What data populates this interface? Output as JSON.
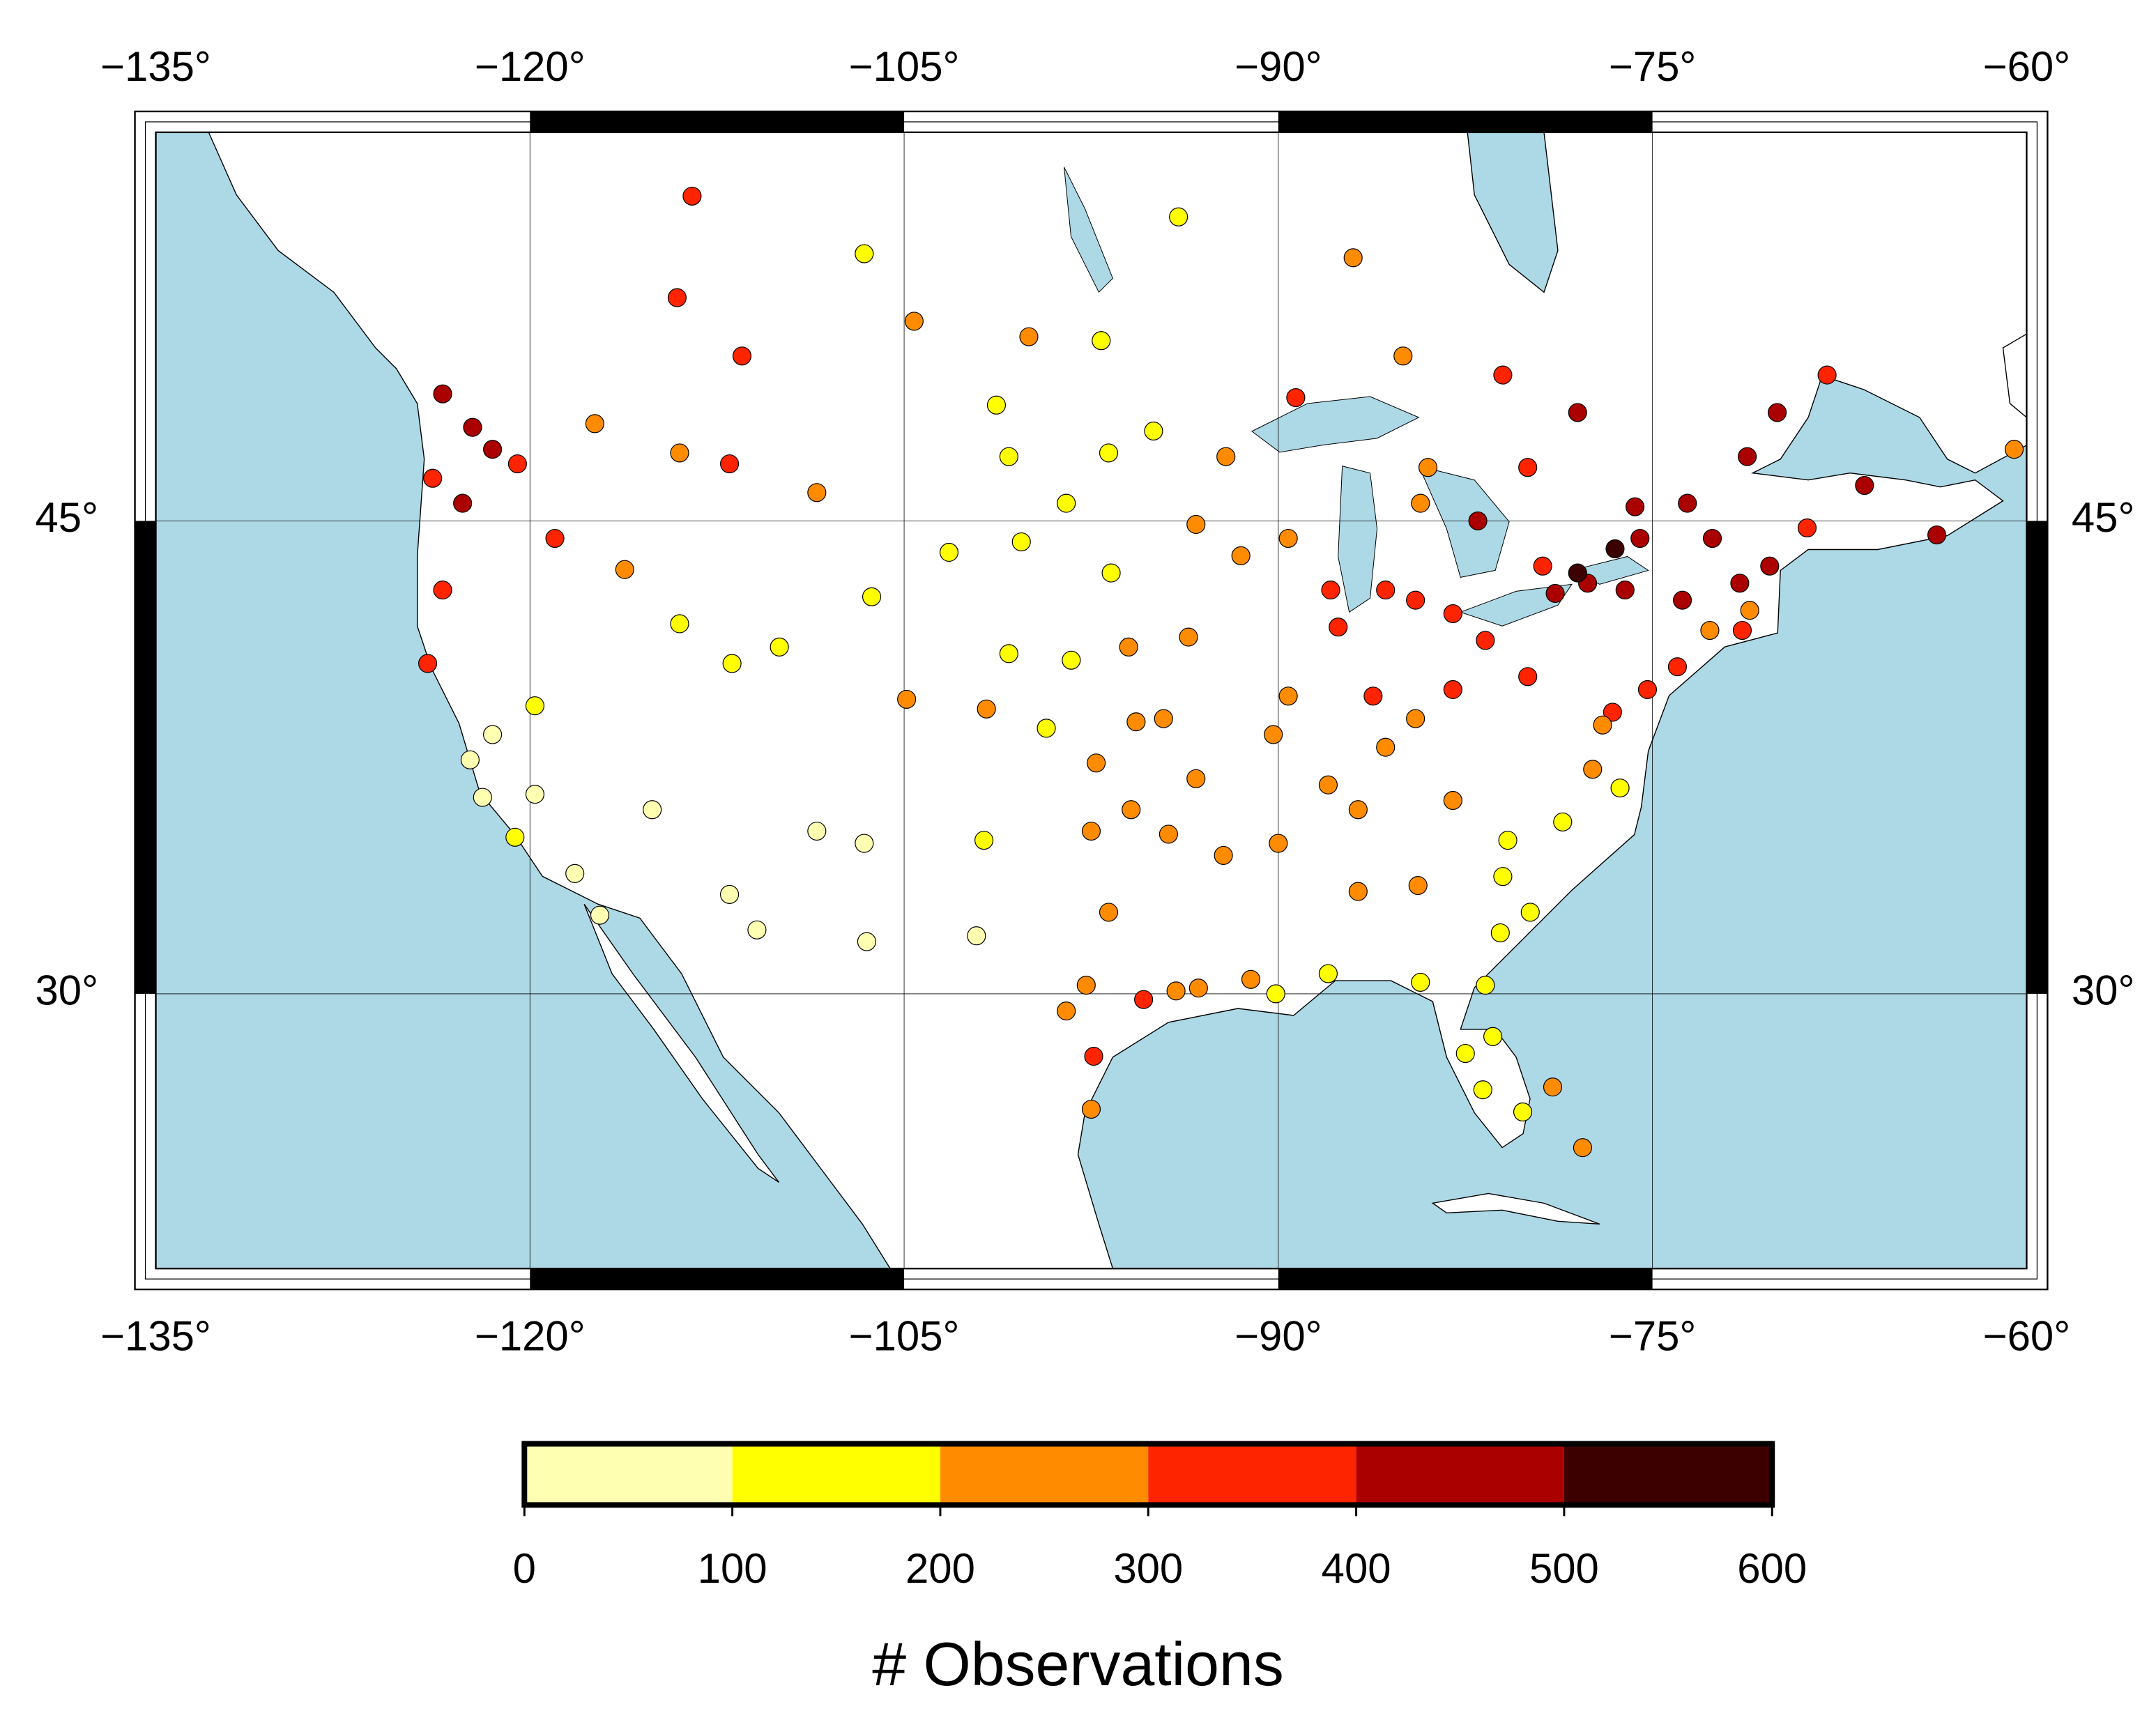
{
  "chart_data": {
    "type": "scatter",
    "projection": "mercator",
    "grid": true,
    "xlim": [
      -135,
      -60
    ],
    "ylim": [
      20,
      55
    ],
    "xticks": [
      {
        "value": -135,
        "label": "−135°"
      },
      {
        "value": -120,
        "label": "−120°"
      },
      {
        "value": -105,
        "label": "−105°"
      },
      {
        "value": -90,
        "label": "−90°"
      },
      {
        "value": -75,
        "label": "−75°"
      },
      {
        "value": -60,
        "label": "−60°"
      }
    ],
    "yticks": [
      {
        "value": 30,
        "label": "30°"
      },
      {
        "value": 45,
        "label": "45°"
      }
    ],
    "x": [
      -123.5,
      -122.3,
      -122.7,
      -123.9,
      -121.5,
      -120.5,
      -117.4,
      -116.2,
      -119.0,
      -123.5,
      -124.1,
      -122.4,
      -121.9,
      -120.6,
      -118.2,
      -117.2,
      -119.8,
      -121.5,
      -119.8,
      -115.1,
      -112.0,
      -110.9,
      -106.6,
      -106.5,
      -108.5,
      -111.9,
      -114.0,
      -110.0,
      -104.9,
      -106.3,
      -108.5,
      -112.0,
      -114.0,
      -111.5,
      -114.1,
      -113.5,
      -106.6,
      -104.6,
      -100.0,
      -97.1,
      -101.3,
      -100.8,
      -96.8,
      -98.5,
      -103.2,
      -100.3,
      -96.7,
      -100.8,
      -96.0,
      -98.3,
      -101.7,
      -97.3,
      -95.7,
      -99.3,
      -101.8,
      -97.5,
      -95.9,
      -102.1,
      -98.5,
      -97.7,
      -96.8,
      -95.4,
      -94.1,
      -97.4,
      -97.5,
      -93.2,
      -90.1,
      -91.1,
      -88.0,
      -92.2,
      -94.4,
      -90.0,
      -93.3,
      -90.2,
      -94.6,
      -93.6,
      -91.5,
      -93.3,
      -92.1,
      -89.6,
      -87.9,
      -87.6,
      -89.6,
      -86.2,
      -85.7,
      -86.8,
      -84.5,
      -83.0,
      -81.7,
      -83.0,
      -84.5,
      -85.7,
      -84.3,
      -80.0,
      -79.4,
      -78.9,
      -77.6,
      -76.1,
      -75.5,
      -73.8,
      -74.0,
      -75.2,
      -76.6,
      -77.0,
      -77.4,
      -76.3,
      -78.6,
      -80.8,
      -81.0,
      -79.9,
      -84.4,
      -81.1,
      -86.8,
      -84.3,
      -81.7,
      -82.5,
      -81.4,
      -80.2,
      -81.8,
      -71.1,
      -72.7,
      -71.4,
      -72.6,
      -71.5,
      -70.3,
      -68.8,
      -73.6,
      -71.2,
      -75.7,
      -70.0,
      -66.5,
      -63.6,
      -68.0,
      -76.5,
      -78.0,
      -82.0,
      -80.0,
      -84.0,
      -89.3,
      -85.0,
      -81.0,
      -78.0,
      -87.0,
      -94.0,
      -60.5,
      -77.8,
      -79.0,
      -95.0,
      -88.0,
      -83.0
    ],
    "y": [
      48.5,
      47.6,
      45.5,
      46.2,
      47.0,
      46.6,
      47.7,
      43.6,
      44.5,
      43.0,
      40.8,
      37.8,
      36.6,
      35.3,
      34.1,
      32.7,
      36.7,
      38.6,
      39.5,
      36.2,
      33.4,
      32.2,
      35.1,
      31.8,
      35.5,
      40.8,
      42.0,
      41.3,
      39.7,
      42.8,
      45.8,
      46.6,
      46.9,
      49.5,
      51.0,
      53.5,
      52.1,
      50.4,
      50.0,
      49.9,
      48.2,
      46.8,
      46.9,
      45.5,
      44.1,
      44.4,
      43.5,
      41.1,
      41.3,
      40.9,
      39.4,
      37.7,
      39.0,
      38.8,
      35.2,
      35.5,
      36.2,
      32.0,
      29.4,
      30.3,
      32.8,
      29.8,
      30.1,
      27.8,
      25.9,
      30.2,
      30.0,
      30.5,
      30.7,
      34.7,
      35.4,
      35.1,
      37.2,
      38.6,
      39.1,
      41.6,
      44.0,
      44.9,
      46.8,
      44.5,
      43.0,
      41.9,
      39.8,
      39.8,
      38.2,
      36.2,
      39.1,
      40.0,
      41.5,
      42.3,
      42.7,
      43.0,
      45.5,
      40.4,
      43.7,
      42.9,
      43.2,
      43.0,
      44.5,
      42.7,
      40.7,
      40.0,
      39.3,
      38.9,
      37.5,
      36.9,
      35.8,
      35.2,
      34.0,
      32.8,
      33.7,
      32.1,
      33.5,
      30.4,
      30.3,
      27.9,
      28.5,
      25.8,
      26.6,
      42.4,
      41.8,
      41.8,
      44.5,
      43.2,
      43.7,
      44.8,
      45.5,
      46.8,
      45.4,
      48.0,
      46.0,
      44.6,
      49.0,
      44.2,
      43.5,
      45.0,
      46.5,
      46.5,
      48.4,
      49.5,
      49.0,
      48.0,
      52.0,
      53.0,
      47.0,
      24.5,
      26.7,
      47.5,
      37.0,
      36.5
    ],
    "values": [
      450,
      480,
      420,
      380,
      430,
      350,
      260,
      260,
      380,
      370,
      340,
      60,
      80,
      140,
      70,
      90,
      60,
      80,
      130,
      70,
      60,
      50,
      70,
      60,
      50,
      130,
      170,
      190,
      230,
      160,
      260,
      350,
      290,
      370,
      330,
      320,
      160,
      250,
      220,
      150,
      150,
      180,
      170,
      150,
      160,
      150,
      150,
      150,
      250,
      170,
      200,
      250,
      240,
      150,
      140,
      250,
      260,
      70,
      260,
      270,
      230,
      310,
      290,
      300,
      280,
      240,
      180,
      220,
      150,
      240,
      250,
      270,
      240,
      230,
      240,
      250,
      230,
      200,
      200,
      280,
      360,
      360,
      260,
      320,
      250,
      250,
      260,
      330,
      360,
      370,
      380,
      350,
      250,
      340,
      380,
      430,
      450,
      460,
      420,
      480,
      300,
      320,
      300,
      260,
      220,
      150,
      150,
      170,
      150,
      140,
      240,
      160,
      250,
      190,
      180,
      150,
      160,
      130,
      120,
      290,
      280,
      300,
      470,
      440,
      400,
      390,
      440,
      460,
      470,
      460,
      400,
      430,
      360,
      500,
      560,
      430,
      350,
      280,
      330,
      260,
      370,
      400,
      250,
      150,
      220,
      260,
      240,
      180,
      250,
      280
    ],
    "colorbar": {
      "label": "# Observations",
      "ticks": [
        0,
        100,
        200,
        300,
        400,
        500,
        600
      ],
      "colors": [
        "#ffffb2",
        "#ffff00",
        "#ff8c00",
        "#ff2400",
        "#aa0000",
        "#3c0000"
      ]
    }
  }
}
